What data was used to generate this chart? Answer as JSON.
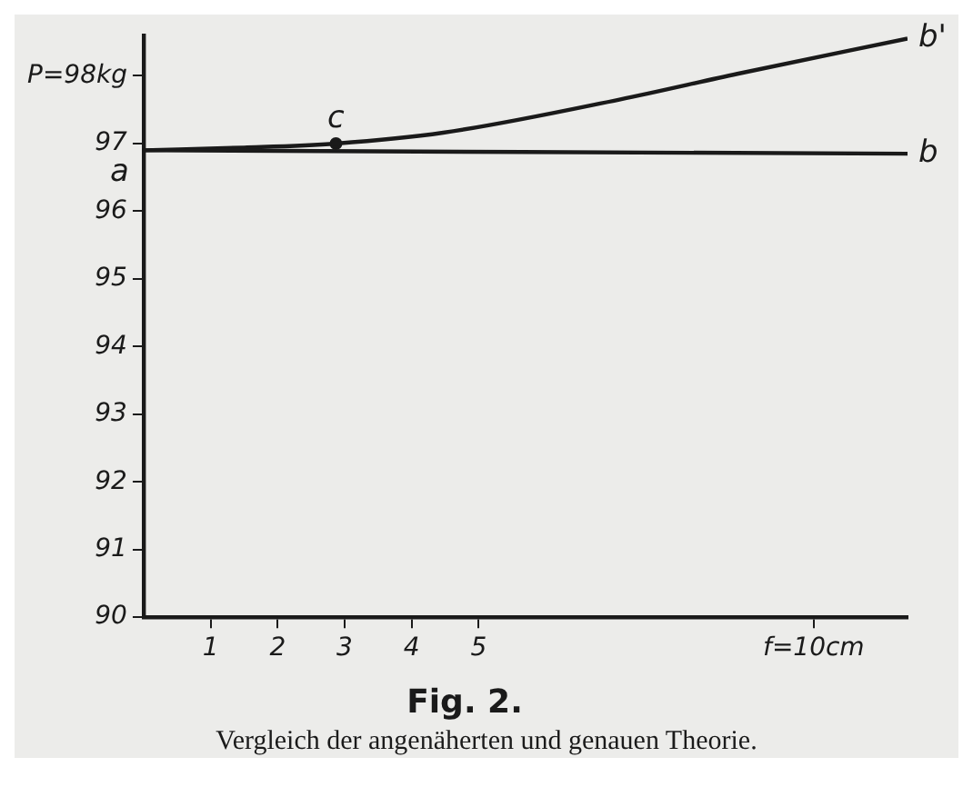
{
  "chart_data": {
    "type": "line",
    "title": "Fig. 2.",
    "xlim": [
      0,
      11.4
    ],
    "ylim": [
      90,
      98.6
    ],
    "xticks": [
      1,
      2,
      3,
      4,
      5,
      {
        "value": 10,
        "label": "f=10cm"
      }
    ],
    "yticks": [
      90,
      91,
      92,
      93,
      94,
      95,
      96,
      97,
      {
        "value": 98,
        "label": "P=98kg"
      }
    ],
    "series": [
      {
        "color": "#1a1a1a",
        "x": [
          0,
          11.4
        ],
        "values": [
          96.9,
          96.85
        ]
      },
      {
        "color": "#1a1a1a",
        "x": [
          0,
          1.5,
          2.87,
          4.47,
          7.1,
          8.86,
          11.4
        ],
        "values": [
          96.9,
          96.94,
          97.0,
          97.16,
          97.65,
          98.03,
          98.55
        ]
      },
      {
        "type": "scatter",
        "marker": "circle",
        "color": "#1a1a1a",
        "x": [
          2.87
        ],
        "values": [
          97.0
        ]
      }
    ],
    "annotations": [
      {
        "text": "a",
        "x": 0,
        "y": 96.9
      },
      {
        "text": "c",
        "x": 2.87,
        "y": 97.0
      },
      {
        "text": "b",
        "x": 11.4,
        "y": 96.85
      },
      {
        "text": "b'",
        "x": 11.4,
        "y": 98.55
      },
      "Vergleich der angenäherten und genauen Theorie."
    ],
    "grid": false,
    "legend": false,
    "marker": "none",
    "line_style": "solid"
  }
}
